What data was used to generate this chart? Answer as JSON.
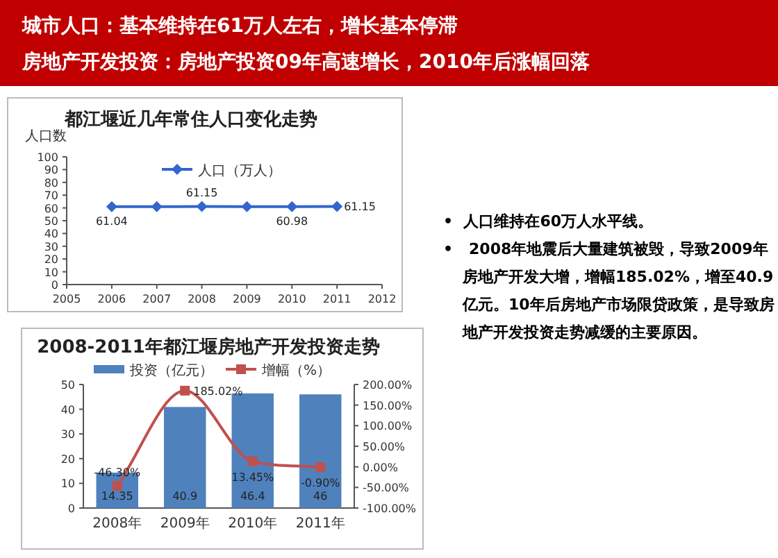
{
  "chart_data": [
    {
      "type": "other",
      "annotations": [
        "城市人口：基本维持在61万人左右，增长基本停滞",
        "房地产开发投资：房地产投资09年高速增长，2010年后涨幅回落"
      ]
    },
    {
      "type": "line",
      "title": "都江堰近几年常住人口变化走势",
      "ylabel": "人口数",
      "x": [
        2006,
        2007,
        2008,
        2009,
        2010,
        2011
      ],
      "xlim": [
        2005,
        2012
      ],
      "xticks": [
        2005,
        2006,
        2007,
        2008,
        2009,
        2010,
        2011,
        2012
      ],
      "ylim": [
        0,
        100
      ],
      "yticks": [
        0,
        10,
        20,
        30,
        40,
        50,
        60,
        70,
        80,
        90,
        100
      ],
      "series": [
        {
          "name": "人口（万人）",
          "color": "#3366cc",
          "values": [
            61.04,
            61,
            61.15,
            61,
            60.98,
            61.15
          ],
          "value_labels": [
            "61.04",
            null,
            "61.15",
            null,
            "60.98",
            "61.15"
          ]
        }
      ],
      "marker": "diamond",
      "legend": "top",
      "grid": false
    },
    {
      "type": "bar",
      "title": "2008-2011年都江堰房地产开发投资走势",
      "categories": [
        "2008年",
        "2009年",
        "2010年",
        "2011年"
      ],
      "series": [
        {
          "name": "投资（亿元）",
          "color": "#4f81bd",
          "values": [
            14.35,
            40.9,
            46.4,
            46
          ],
          "value_labels": [
            "14.35",
            "40.9",
            "46.4",
            "46"
          ]
        },
        {
          "name": "增幅（%）",
          "type": "line",
          "axis": "y2",
          "color": "#c0504d",
          "values": [
            -46.3,
            185.02,
            13.45,
            -0.9
          ],
          "value_labels": [
            "-46.30%",
            "185.02%",
            "13.45%",
            "-0.90%"
          ]
        }
      ],
      "ylim": [
        0,
        50
      ],
      "yticks": [
        0,
        10,
        20,
        30,
        40,
        50
      ],
      "y2lim": [
        -100,
        200
      ],
      "y2ticks": [
        {
          "value": -100,
          "label": "-100.00%"
        },
        {
          "value": -50,
          "label": "-50.00%"
        },
        {
          "value": 0,
          "label": "0.00%"
        },
        {
          "value": 50,
          "label": "50.00%"
        },
        {
          "value": 100,
          "label": "100.00%"
        },
        {
          "value": 150,
          "label": "150.00%"
        },
        {
          "value": 200,
          "label": "200.00%"
        }
      ],
      "marker": "square",
      "legend": "top",
      "grid": false
    },
    {
      "type": "other",
      "annotations": [
        "•  人口维持在60万人水平线。",
        "•   2008年地震后大量建筑被毁，导致2009年房地产开发大增，增幅185.02%，增至40.9亿元。10年后房地产市场限贷政策，是导致房地产开发投资走势减缓的主要原因。"
      ]
    }
  ]
}
